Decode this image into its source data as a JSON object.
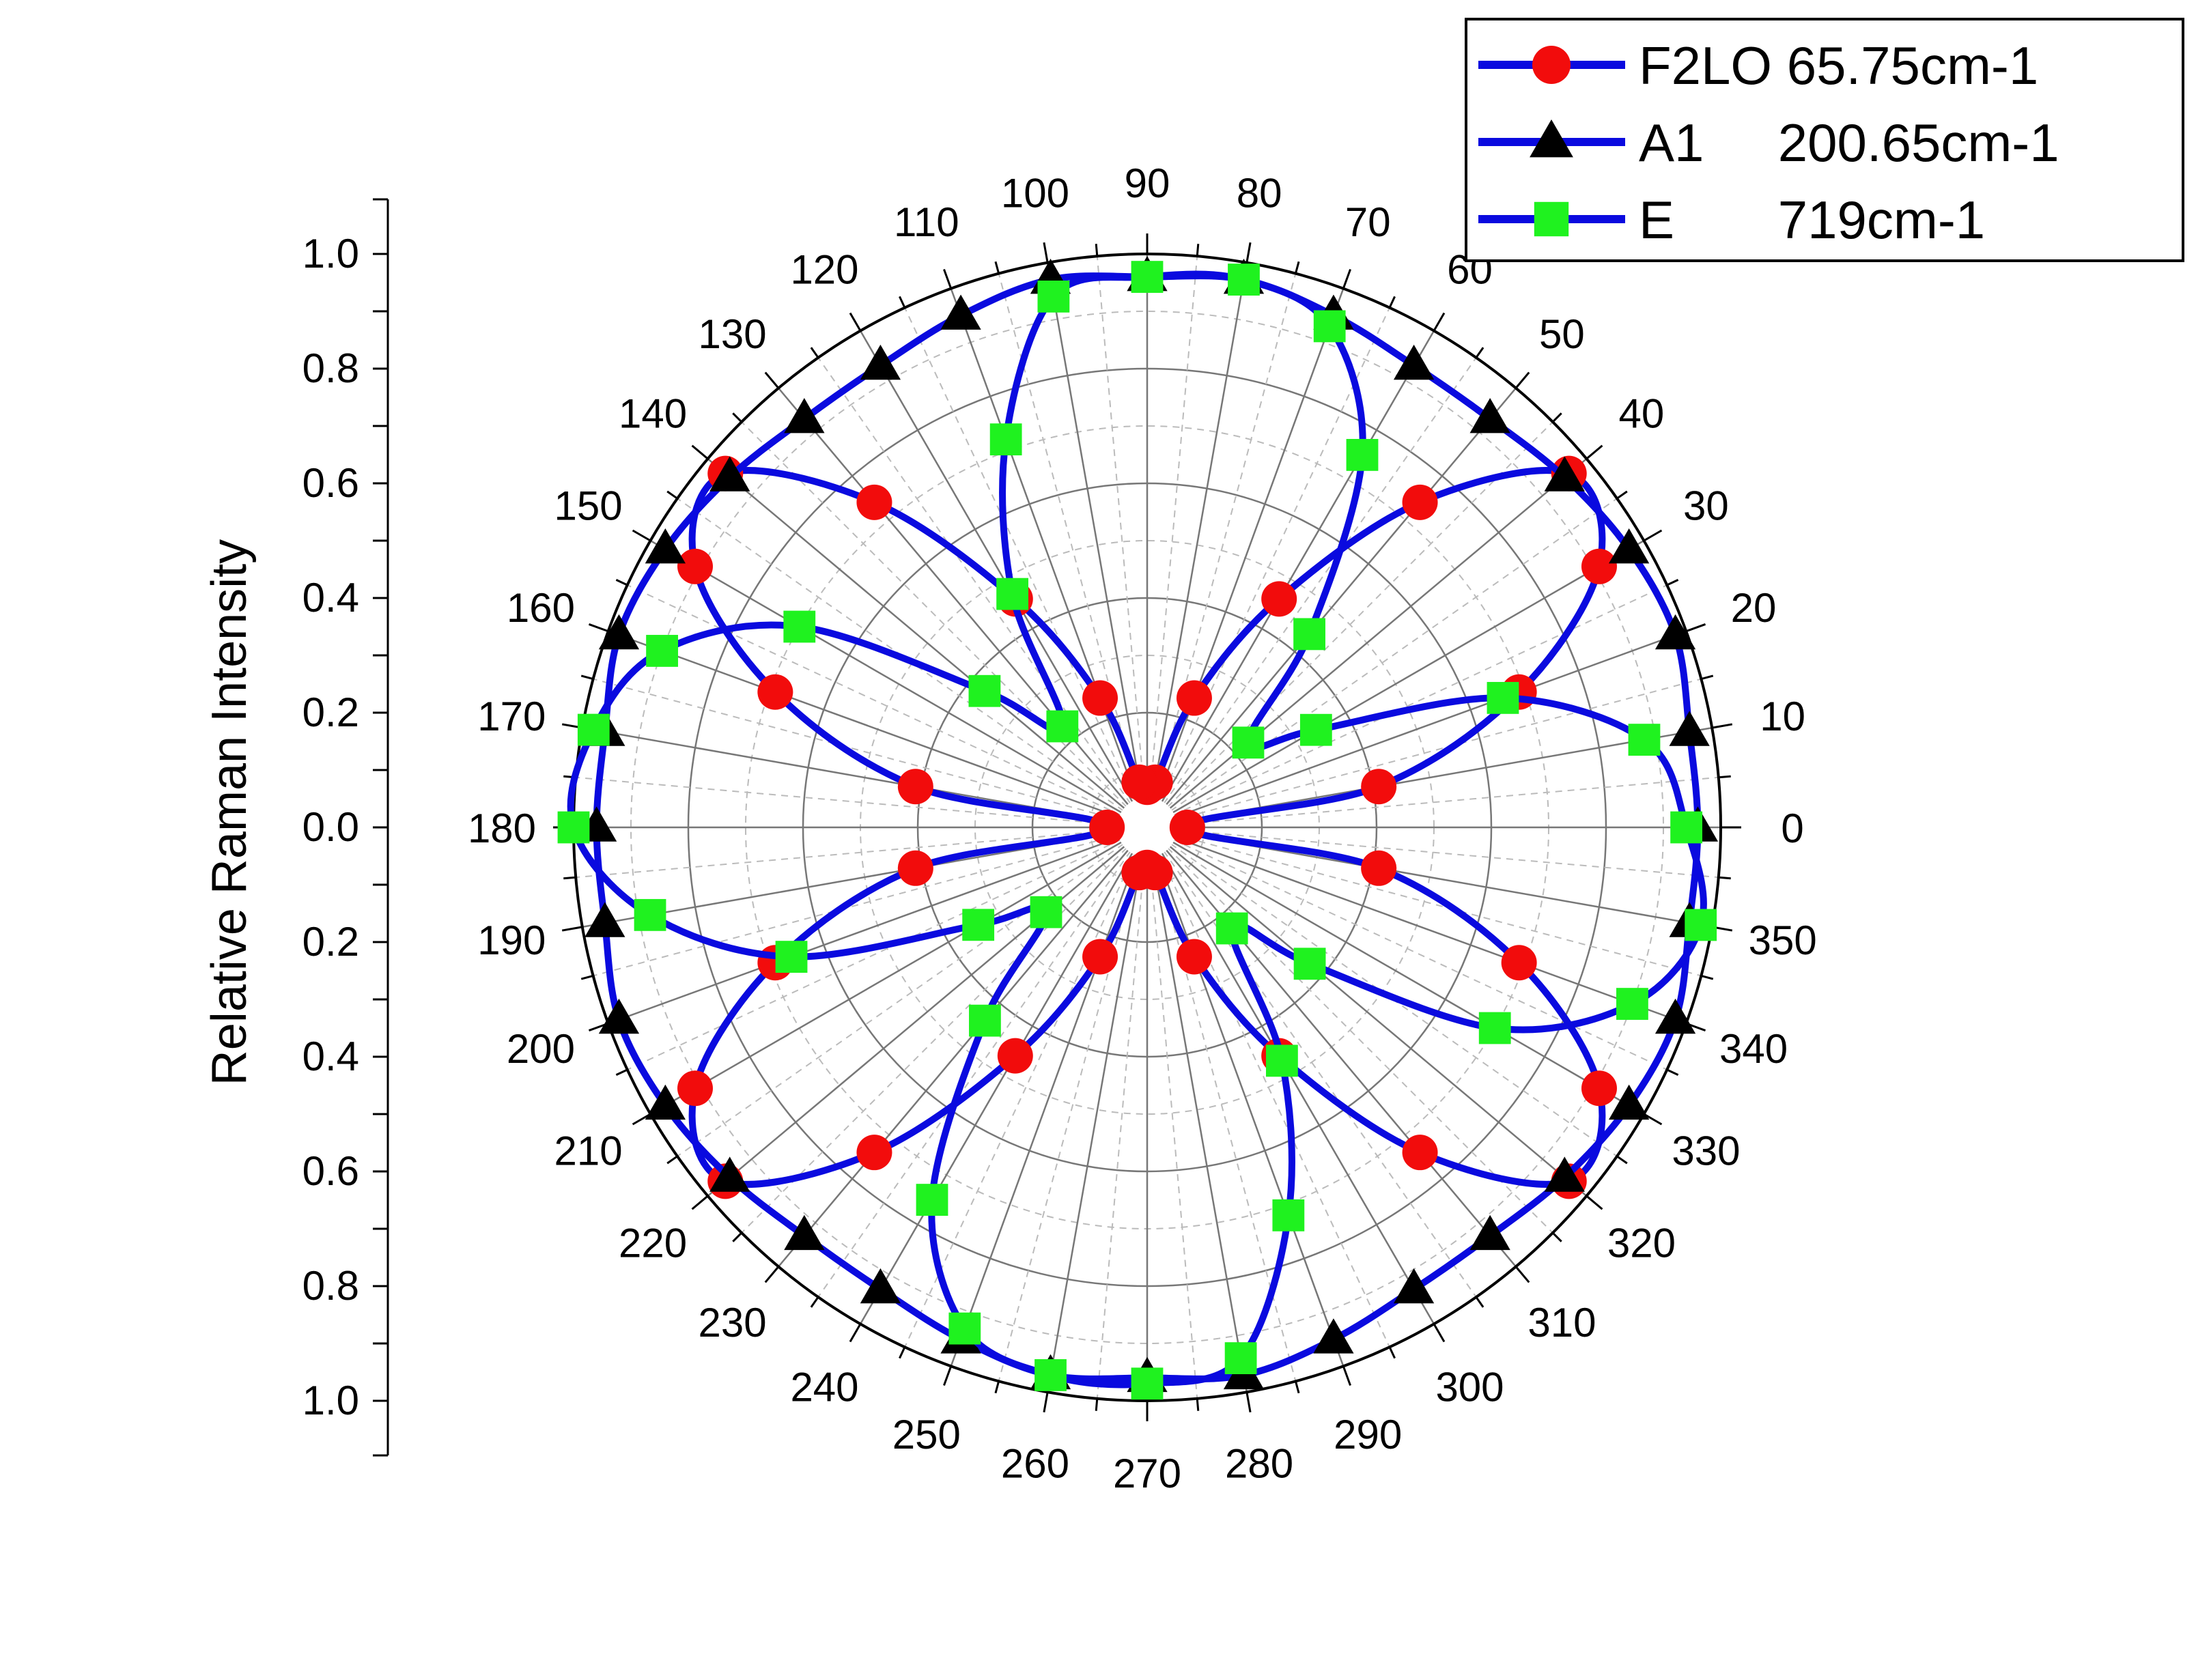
{
  "chart_data": {
    "type": "polar",
    "ylabel": "Relative Raman Intensity",
    "radial_ticks": [
      "0.0",
      "0.2",
      "0.4",
      "0.6",
      "0.8",
      "1.0"
    ],
    "radial_range": [
      0,
      1
    ],
    "angle_ticks": [
      "0",
      "10",
      "20",
      "30",
      "40",
      "50",
      "60",
      "70",
      "80",
      "90",
      "100",
      "110",
      "120",
      "130",
      "140",
      "150",
      "160",
      "170",
      "180",
      "190",
      "200",
      "210",
      "220",
      "230",
      "240",
      "250",
      "260",
      "270",
      "280",
      "290",
      "300",
      "310",
      "320",
      "330",
      "340",
      "350"
    ],
    "angle_step": 10,
    "grid": true,
    "legend_position": "top-right",
    "colors": {
      "line": "#0a0adf",
      "f2lo_marker": "#f20c0c",
      "a1_marker": "#000000",
      "e_marker": "#1ff21f"
    },
    "series": [
      {
        "name": "F2LO 65.75cm-1",
        "marker": "circle",
        "angles": [
          0,
          10,
          20,
          30,
          40,
          50,
          60,
          70,
          80,
          90,
          100,
          110,
          120,
          130,
          140,
          150,
          160,
          170,
          180,
          190,
          200,
          210,
          220,
          230,
          240,
          250,
          260,
          270,
          280,
          290,
          300,
          310,
          320,
          330,
          340,
          350
        ],
        "values": [
          0.07,
          0.41,
          0.69,
          0.91,
          0.96,
          0.74,
          0.46,
          0.24,
          0.08,
          0.07,
          0.08,
          0.24,
          0.46,
          0.74,
          0.96,
          0.91,
          0.69,
          0.41,
          0.07,
          0.41,
          0.69,
          0.91,
          0.96,
          0.74,
          0.46,
          0.24,
          0.08,
          0.07,
          0.08,
          0.24,
          0.46,
          0.74,
          0.96,
          0.91,
          0.69,
          0.41
        ]
      },
      {
        "name": "A1     200.65cm-1",
        "marker": "triangle",
        "angles": [
          0,
          10,
          20,
          30,
          40,
          50,
          60,
          70,
          80,
          90,
          100,
          110,
          120,
          130,
          140,
          150,
          160,
          170,
          180,
          190,
          200,
          210,
          220,
          230,
          240,
          250,
          260,
          270,
          280,
          290,
          300,
          310,
          320,
          330,
          340,
          350
        ],
        "values": [
          0.96,
          0.96,
          0.98,
          0.97,
          0.95,
          0.93,
          0.93,
          0.95,
          0.97,
          0.96,
          0.97,
          0.95,
          0.93,
          0.93,
          0.95,
          0.97,
          0.98,
          0.96,
          0.96,
          0.96,
          0.98,
          0.97,
          0.95,
          0.93,
          0.93,
          0.95,
          0.97,
          0.96,
          0.97,
          0.95,
          0.93,
          0.93,
          0.95,
          0.97,
          0.98,
          0.96
        ]
      },
      {
        "name": "E       719cm-1",
        "marker": "square",
        "angles": [
          0,
          10,
          20,
          30,
          40,
          50,
          60,
          70,
          80,
          90,
          100,
          110,
          120,
          130,
          140,
          150,
          160,
          170,
          180,
          190,
          200,
          210,
          220,
          230,
          240,
          250,
          260,
          270,
          280,
          290,
          300,
          310,
          320,
          330,
          340,
          350
        ],
        "values": [
          0.94,
          0.88,
          0.66,
          0.34,
          0.23,
          0.44,
          0.75,
          0.93,
          0.97,
          0.96,
          0.94,
          0.72,
          0.47,
          0.23,
          0.37,
          0.7,
          0.9,
          0.98,
          1.0,
          0.88,
          0.66,
          0.34,
          0.23,
          0.44,
          0.75,
          0.93,
          0.97,
          0.97,
          0.94,
          0.72,
          0.47,
          0.23,
          0.37,
          0.7,
          0.9,
          0.98
        ]
      }
    ]
  }
}
